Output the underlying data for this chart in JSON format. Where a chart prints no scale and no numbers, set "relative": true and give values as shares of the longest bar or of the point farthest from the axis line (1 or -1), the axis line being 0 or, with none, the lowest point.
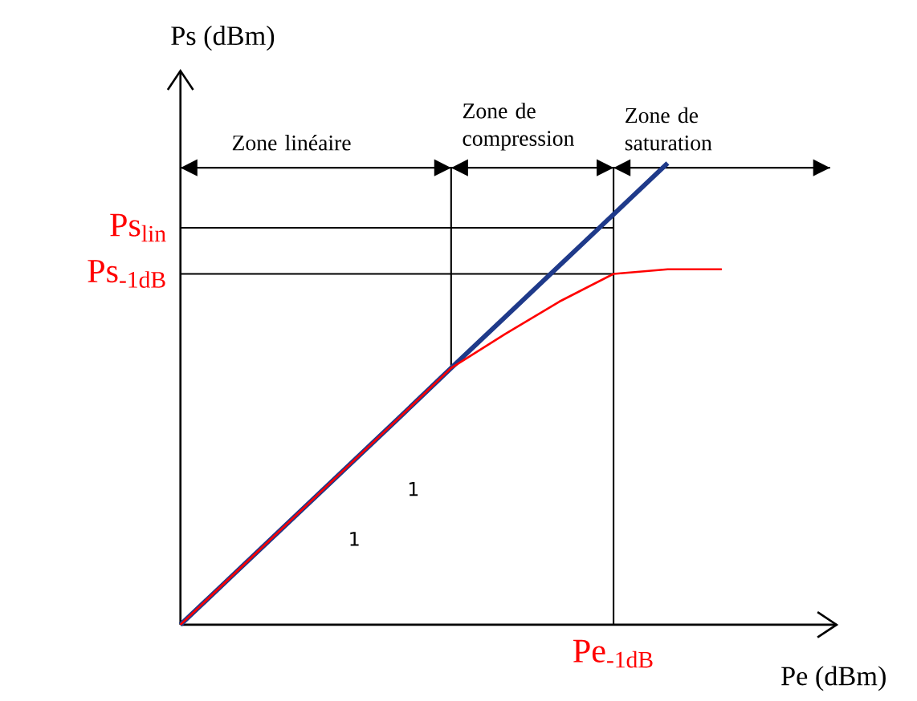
{
  "chart_data": {
    "type": "line",
    "relative": true,
    "xlabel": "Pe (dBm)",
    "ylabel": "Ps (dBm)",
    "categories": [
      null,
      null,
      null,
      null,
      null,
      null,
      null,
      null,
      null,
      null,
      null,
      null,
      null
    ],
    "series": [
      {
        "color": "#ff0000",
        "values": [
          0,
          0.111,
          0.222,
          0.333,
          0.444,
          0.556,
          0.63,
          0.7,
          0.76,
          0.77,
          0.77,
          null,
          null
        ]
      },
      {
        "color": "#1f3a8a",
        "values": [
          0,
          0.111,
          0.222,
          0.333,
          0.444,
          0.556,
          0.667,
          0.778,
          0.889,
          1,
          null,
          null,
          null
        ]
      }
    ],
    "ref_lines": [
      {
        "axis": "y",
        "value": 0.86,
        "label": "Ps$_{lin}$"
      },
      {
        "axis": "y",
        "value": 0.76,
        "label": "Ps$_{-1dB}$"
      },
      {
        "axis": "y",
        "value": 0.99,
        "label": null
      }
    ],
    "annotations": [
      "Zone linéaire",
      "Zone de compression",
      "Zone de saturation",
      "Pe$_{-1dB}$",
      "1",
      "1"
    ]
  }
}
